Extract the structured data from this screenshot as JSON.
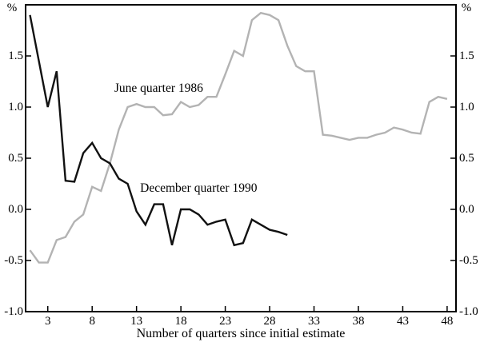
{
  "chart_data": {
    "type": "line",
    "title": "",
    "xlabel": "Number of quarters since initial estimate",
    "ylabel_left": "%",
    "ylabel_right": "%",
    "xlim": [
      0.5,
      49
    ],
    "ylim": [
      -1.0,
      2.0
    ],
    "x_ticks": [
      3,
      8,
      13,
      18,
      23,
      28,
      33,
      38,
      43,
      48
    ],
    "y_ticks": [
      1.5,
      1.0,
      0.5,
      0.0,
      -0.5,
      -1.0
    ],
    "grid": false,
    "frame_color": "#000000",
    "series": [
      {
        "name": "June quarter 1986",
        "color": "#b3b3b3",
        "line_width": 2.4,
        "label_pos": {
          "x": 15.5,
          "y": 1.18
        },
        "x": [
          1,
          2,
          3,
          4,
          5,
          6,
          7,
          8,
          9,
          10,
          11,
          12,
          13,
          14,
          15,
          16,
          17,
          18,
          19,
          20,
          21,
          22,
          23,
          24,
          25,
          26,
          27,
          28,
          29,
          30,
          31,
          32,
          33,
          34,
          35,
          36,
          37,
          38,
          39,
          40,
          41,
          42,
          43,
          44,
          45,
          46,
          47,
          48
        ],
        "values": [
          -0.4,
          -0.52,
          -0.52,
          -0.3,
          -0.27,
          -0.12,
          -0.05,
          0.22,
          0.18,
          0.45,
          0.78,
          1.0,
          1.03,
          1.0,
          1.0,
          0.92,
          0.93,
          1.05,
          1.0,
          1.02,
          1.1,
          1.1,
          1.32,
          1.55,
          1.5,
          1.85,
          1.92,
          1.9,
          1.85,
          1.6,
          1.4,
          1.35,
          1.35,
          0.73,
          0.72,
          0.7,
          0.68,
          0.7,
          0.7,
          0.73,
          0.75,
          0.8,
          0.78,
          0.75,
          0.74,
          1.05,
          1.1,
          1.08
        ]
      },
      {
        "name": "December quarter 1990",
        "color": "#111111",
        "line_width": 2.4,
        "label_pos": {
          "x": 20,
          "y": 0.2
        },
        "x": [
          1,
          2,
          3,
          4,
          5,
          6,
          7,
          8,
          9,
          10,
          11,
          12,
          13,
          14,
          15,
          16,
          17,
          18,
          19,
          20,
          21,
          22,
          23,
          24,
          25,
          26,
          27,
          28,
          29,
          30
        ],
        "values": [
          1.9,
          1.45,
          1.0,
          1.35,
          0.28,
          0.27,
          0.55,
          0.65,
          0.5,
          0.45,
          0.3,
          0.25,
          -0.02,
          -0.15,
          0.05,
          0.05,
          -0.35,
          0.0,
          0.0,
          -0.05,
          -0.15,
          -0.12,
          -0.1,
          -0.35,
          -0.33,
          -0.1,
          -0.15,
          -0.2,
          -0.22,
          -0.25
        ]
      }
    ]
  }
}
